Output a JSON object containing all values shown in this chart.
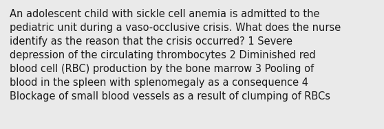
{
  "text": "An adolescent child with sickle cell anemia is admitted to the\npediatric unit during a vaso-occlusive crisis. What does the nurse\nidentify as the reason that the crisis occurred? 1 Severe\ndepression of the circulating thrombocytes 2 Diminished red\nblood cell (RBC) production by the bone marrow 3 Pooling of\nblood in the spleen with splenomegaly as a consequence 4\nBlockage of small blood vessels as a result of clumping of RBCs",
  "background_color": "#eaeaea",
  "text_color": "#1a1a1a",
  "font_size": 10.5,
  "fig_width": 5.58,
  "fig_height": 1.88,
  "dpi": 100
}
